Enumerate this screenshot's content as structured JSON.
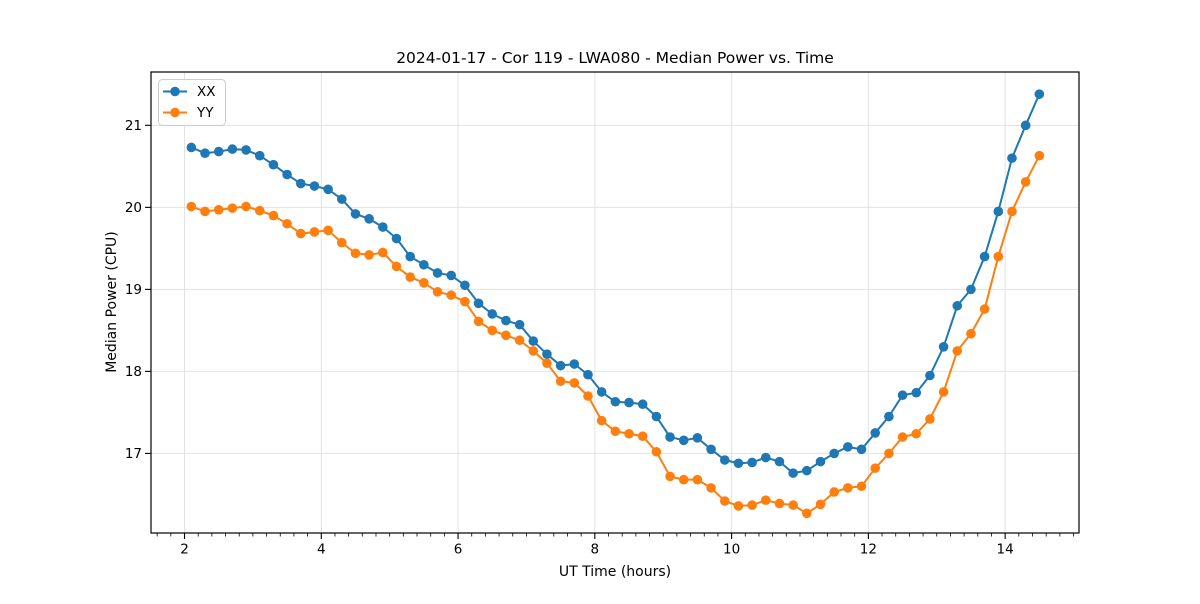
{
  "chart_data": {
    "type": "line",
    "title": "2024-01-17 - Cor 119 - LWA080 - Median Power vs. Time",
    "xlabel": "UT Time (hours)",
    "ylabel": "Median Power (CPU)",
    "xlim": [
      1.51,
      15.08
    ],
    "ylim": [
      16.03,
      21.65
    ],
    "x_ticks": [
      2,
      4,
      6,
      8,
      10,
      12,
      14
    ],
    "y_ticks": [
      17,
      18,
      19,
      20,
      21
    ],
    "x_minor_step": 0.2,
    "grid": true,
    "grid_color": "#e2e2e2",
    "legend_position": "upper-left",
    "x": [
      2.1,
      2.3,
      2.5,
      2.7,
      2.9,
      3.1,
      3.3,
      3.5,
      3.7,
      3.9,
      4.1,
      4.3,
      4.5,
      4.7,
      4.9,
      5.1,
      5.3,
      5.5,
      5.7,
      5.9,
      6.1,
      6.3,
      6.5,
      6.7,
      6.9,
      7.1,
      7.3,
      7.5,
      7.7,
      7.9,
      8.1,
      8.3,
      8.5,
      8.7,
      8.9,
      9.1,
      9.3,
      9.5,
      9.7,
      9.9,
      10.1,
      10.3,
      10.5,
      10.7,
      10.9,
      11.1,
      11.3,
      11.5,
      11.7,
      11.9,
      12.1,
      12.3,
      12.5,
      12.7,
      12.9,
      13.1,
      13.3,
      13.5,
      13.7,
      13.9,
      14.1,
      14.3,
      14.5
    ],
    "series": [
      {
        "name": "XX",
        "color": "#1f77b4",
        "values": [
          20.73,
          20.66,
          20.68,
          20.71,
          20.7,
          20.63,
          20.52,
          20.4,
          20.29,
          20.26,
          20.22,
          20.1,
          19.92,
          19.86,
          19.76,
          19.62,
          19.4,
          19.3,
          19.2,
          19.17,
          19.05,
          18.83,
          18.7,
          18.62,
          18.57,
          18.37,
          18.21,
          18.07,
          18.09,
          17.96,
          17.75,
          17.63,
          17.62,
          17.6,
          17.45,
          17.2,
          17.16,
          17.19,
          17.05,
          16.92,
          16.88,
          16.89,
          16.95,
          16.9,
          16.76,
          16.79,
          16.9,
          17.0,
          17.08,
          17.05,
          17.25,
          17.45,
          17.71,
          17.74,
          17.95,
          18.3,
          18.8,
          19.0,
          19.4,
          19.95,
          20.6,
          21.0,
          21.38
        ]
      },
      {
        "name": "YY",
        "color": "#ff7f0e",
        "values": [
          20.01,
          19.95,
          19.97,
          19.99,
          20.01,
          19.96,
          19.9,
          19.8,
          19.68,
          19.7,
          19.72,
          19.57,
          19.44,
          19.42,
          19.45,
          19.28,
          19.15,
          19.08,
          18.97,
          18.93,
          18.85,
          18.61,
          18.5,
          18.44,
          18.38,
          18.25,
          18.1,
          17.88,
          17.86,
          17.7,
          17.4,
          17.27,
          17.24,
          17.21,
          17.02,
          16.72,
          16.68,
          16.68,
          16.58,
          16.42,
          16.36,
          16.37,
          16.43,
          16.39,
          16.37,
          16.27,
          16.38,
          16.53,
          16.58,
          16.6,
          16.82,
          17.0,
          17.2,
          17.24,
          17.42,
          17.75,
          18.25,
          18.46,
          18.76,
          19.4,
          19.95,
          20.31,
          20.63
        ]
      }
    ]
  }
}
